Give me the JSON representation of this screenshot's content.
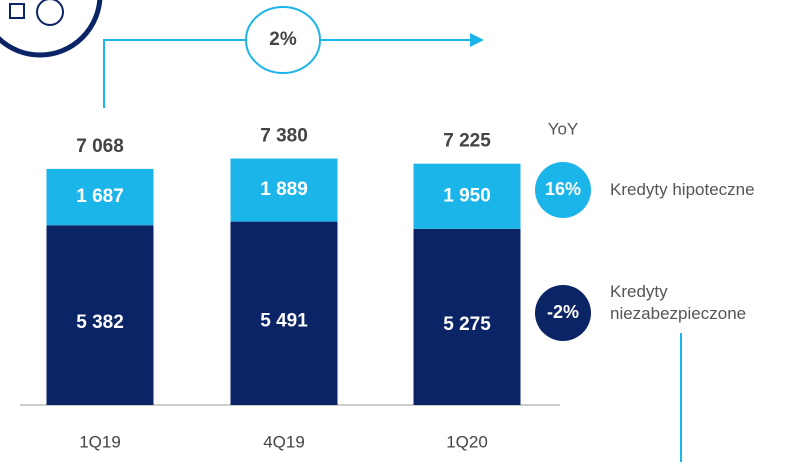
{
  "chart_data": {
    "type": "stacked_bar",
    "categories": [
      "1Q19",
      "4Q19",
      "1Q20"
    ],
    "series": [
      {
        "name": "Kredyty niezabezpieczone",
        "color": "#0b2465",
        "values": [
          5382,
          5491,
          5275
        ],
        "value_labels": [
          "5 382",
          "5 491",
          "5 275"
        ],
        "yoy": "-2%"
      },
      {
        "name": "Kredyty hipoteczne",
        "color": "#1cb5ea",
        "values": [
          1687,
          1889,
          1950
        ],
        "value_labels": [
          "1 687",
          "1 889",
          "1 950"
        ],
        "yoy": "16%"
      }
    ],
    "totals": [
      7068,
      7380,
      7225
    ],
    "total_labels": [
      "7 068",
      "7 380",
      "7 225"
    ],
    "yoy_label": "YoY",
    "growth_label": "2%"
  }
}
